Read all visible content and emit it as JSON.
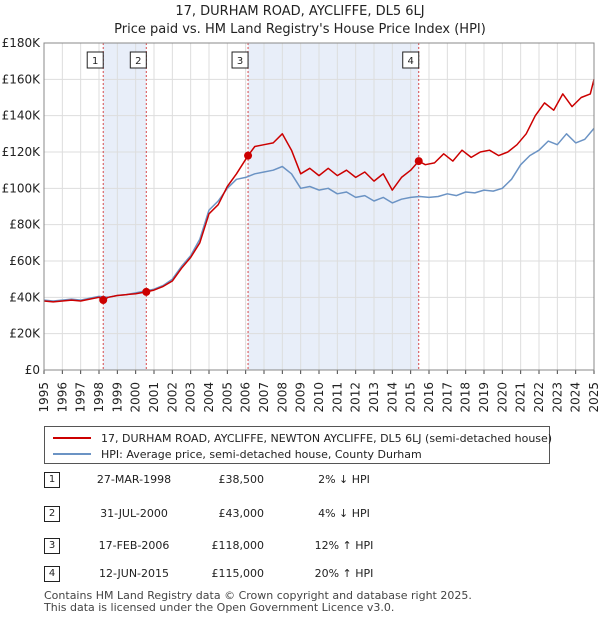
{
  "chart_data": {
    "type": "line",
    "title": "17, DURHAM ROAD, AYCLIFFE, DL5 6LJ",
    "subtitle": "Price paid vs. HM Land Registry's House Price Index (HPI)",
    "xlabel": "",
    "ylabel": "",
    "xlim": [
      1995,
      2025
    ],
    "ylim": [
      0,
      180000
    ],
    "y_ticks": [
      0,
      20000,
      40000,
      60000,
      80000,
      100000,
      120000,
      140000,
      160000,
      180000
    ],
    "y_tick_labels": [
      "£0",
      "£20K",
      "£40K",
      "£60K",
      "£80K",
      "£100K",
      "£120K",
      "£140K",
      "£160K",
      "£180K"
    ],
    "x_ticks": [
      1995,
      1996,
      1997,
      1998,
      1999,
      2000,
      2001,
      2002,
      2003,
      2004,
      2005,
      2006,
      2007,
      2008,
      2009,
      2010,
      2011,
      2012,
      2013,
      2014,
      2015,
      2016,
      2017,
      2018,
      2019,
      2020,
      2021,
      2022,
      2023,
      2024,
      2025
    ],
    "x_tick_labels": [
      "1995",
      "1996",
      "1997",
      "1998",
      "1999",
      "2000",
      "2001",
      "2002",
      "2003",
      "2004",
      "2005",
      "2006",
      "2007",
      "2008",
      "2009",
      "2010",
      "2011",
      "2012",
      "2013",
      "2014",
      "2015",
      "2016",
      "2017",
      "2018",
      "2019",
      "2020",
      "2021",
      "2022",
      "2023",
      "2024",
      "2025"
    ],
    "grid": true,
    "shaded_ranges": [
      [
        1998.23,
        2000.58
      ],
      [
        2006.13,
        2015.44
      ]
    ],
    "series": [
      {
        "name": "17, DURHAM ROAD, AYCLIFFE, NEWTON AYCLIFFE, DL5 6LJ (semi-detached house)",
        "color": "#cc0000",
        "x": [
          1995,
          1995.5,
          1996,
          1996.5,
          1997,
          1997.5,
          1998,
          1998.23,
          1998.5,
          1999,
          1999.5,
          2000,
          2000.58,
          2001,
          2001.5,
          2002,
          2002.5,
          2003,
          2003.5,
          2004,
          2004.5,
          2005,
          2005.5,
          2006,
          2006.13,
          2006.5,
          2007,
          2007.5,
          2008,
          2008.5,
          2009,
          2009.5,
          2010,
          2010.5,
          2011,
          2011.5,
          2012,
          2012.5,
          2013,
          2013.5,
          2014,
          2014.5,
          2015,
          2015.44,
          2015.8,
          2016.3,
          2016.8,
          2017.3,
          2017.8,
          2018.3,
          2018.8,
          2019.3,
          2019.8,
          2020.3,
          2020.8,
          2021.3,
          2021.8,
          2022.3,
          2022.8,
          2023.3,
          2023.8,
          2024.3,
          2024.8,
          2025
        ],
        "values": [
          38000,
          37500,
          38000,
          38500,
          38000,
          39000,
          40000,
          38500,
          40000,
          41000,
          41500,
          42000,
          43000,
          44000,
          46000,
          49000,
          56000,
          62000,
          70000,
          86000,
          91000,
          101000,
          108000,
          116000,
          118000,
          123000,
          124000,
          125000,
          130000,
          121000,
          108000,
          111000,
          107000,
          111000,
          107000,
          110000,
          106000,
          109000,
          104000,
          108000,
          99000,
          106000,
          110000,
          115000,
          113000,
          114000,
          119000,
          115000,
          121000,
          117000,
          120000,
          121000,
          118000,
          120000,
          124000,
          130000,
          140000,
          147000,
          143000,
          152000,
          145000,
          150000,
          152000,
          160000
        ]
      },
      {
        "name": "HPI: Average price, semi-detached house, County Durham",
        "color": "#6b93c4",
        "x": [
          1995,
          1995.5,
          1996,
          1996.5,
          1997,
          1997.5,
          1998,
          1998.5,
          1999,
          1999.5,
          2000,
          2000.5,
          2001,
          2001.5,
          2002,
          2002.5,
          2003,
          2003.5,
          2004,
          2004.5,
          2005,
          2005.5,
          2006,
          2006.5,
          2007,
          2007.5,
          2008,
          2008.5,
          2009,
          2009.5,
          2010,
          2010.5,
          2011,
          2011.5,
          2012,
          2012.5,
          2013,
          2013.5,
          2014,
          2014.5,
          2015,
          2015.5,
          2016,
          2016.5,
          2017,
          2017.5,
          2018,
          2018.5,
          2019,
          2019.5,
          2020,
          2020.5,
          2021,
          2021.5,
          2022,
          2022.5,
          2023,
          2023.5,
          2024,
          2024.5,
          2025
        ],
        "values": [
          38500,
          38000,
          38500,
          39000,
          38500,
          39500,
          40500,
          40000,
          41000,
          41500,
          42500,
          43500,
          44500,
          46500,
          50000,
          57000,
          63000,
          72000,
          88000,
          93000,
          100000,
          105000,
          106000,
          108000,
          109000,
          110000,
          112000,
          108000,
          100000,
          101000,
          99000,
          100000,
          97000,
          98000,
          95000,
          96000,
          93000,
          95000,
          92000,
          94000,
          95000,
          95500,
          95000,
          95500,
          97000,
          96000,
          98000,
          97500,
          99000,
          98500,
          100000,
          105000,
          113000,
          118000,
          121000,
          126000,
          124000,
          130000,
          125000,
          127000,
          133000
        ]
      }
    ],
    "sales": [
      {
        "n": "1",
        "x": 1998.23,
        "value": 38500
      },
      {
        "n": "2",
        "x": 2000.58,
        "value": 43000
      },
      {
        "n": "3",
        "x": 2006.13,
        "value": 118000
      },
      {
        "n": "4",
        "x": 2015.44,
        "value": 115000
      }
    ]
  },
  "legend": {
    "property": "17, DURHAM ROAD, AYCLIFFE, NEWTON AYCLIFFE, DL5 6LJ (semi-detached house)",
    "hpi": "HPI: Average price, semi-detached house, County Durham"
  },
  "table": [
    {
      "num": "1",
      "date": "27-MAR-1998",
      "price": "£38,500",
      "hpi": "2% ↓ HPI"
    },
    {
      "num": "2",
      "date": "31-JUL-2000",
      "price": "£43,000",
      "hpi": "4% ↓ HPI"
    },
    {
      "num": "3",
      "date": "17-FEB-2006",
      "price": "£118,000",
      "hpi": "12% ↑ HPI"
    },
    {
      "num": "4",
      "date": "12-JUN-2015",
      "price": "£115,000",
      "hpi": "20% ↑ HPI"
    }
  ],
  "footer": {
    "line1": "Contains HM Land Registry data © Crown copyright and database right 2025.",
    "line2": "This data is licensed under the Open Government Licence v3.0."
  },
  "colors": {
    "property": "#cc0000",
    "hpi": "#6b93c4",
    "shade": "#e8eef9",
    "grid": "#dddddd"
  }
}
